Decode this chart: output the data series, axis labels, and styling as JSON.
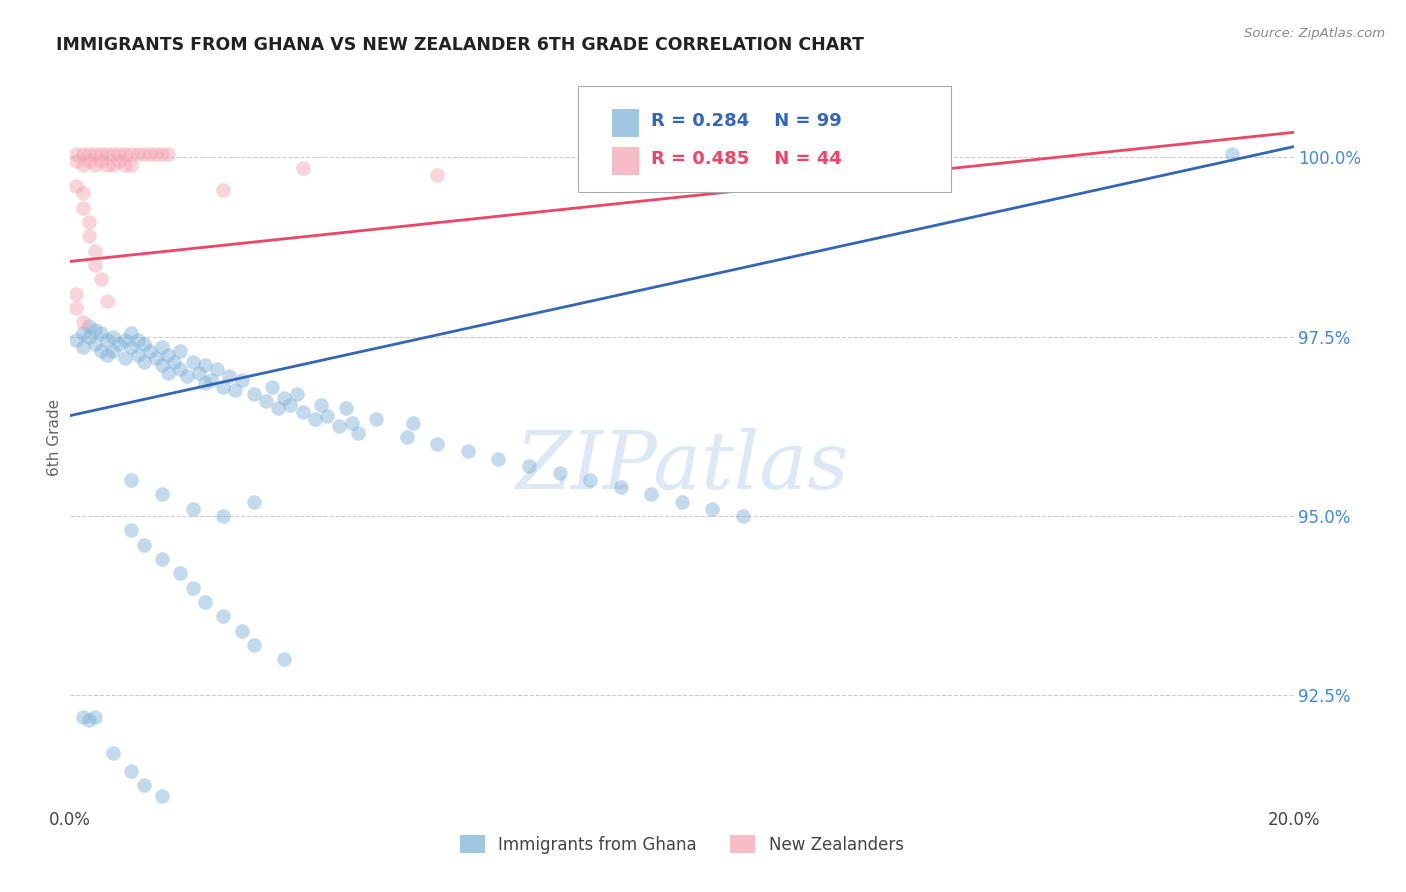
{
  "title": "IMMIGRANTS FROM GHANA VS NEW ZEALANDER 6TH GRADE CORRELATION CHART",
  "source": "Source: ZipAtlas.com",
  "ylabel": "6th Grade",
  "ylabel_right_ticks": [
    92.5,
    95.0,
    97.5,
    100.0
  ],
  "ylabel_right_labels": [
    "92.5%",
    "95.0%",
    "97.5%",
    "100.0%"
  ],
  "blue_color": "#7aaed6",
  "pink_color": "#f4a0b0",
  "blue_line_color": "#3366bb",
  "pink_line_color": "#ee4466",
  "watermark_text": "ZIPatlas",
  "watermark_color": "#dce8f5",
  "xmin": 0.0,
  "xmax": 0.2,
  "ymin": 91.0,
  "ymax": 101.2,
  "blue_line_x": [
    0.0,
    0.2
  ],
  "blue_line_y": [
    96.4,
    100.15
  ],
  "pink_line_x": [
    0.0,
    0.2
  ],
  "pink_line_y": [
    98.55,
    100.35
  ],
  "blue_scatter": [
    [
      0.001,
      97.45
    ],
    [
      0.002,
      97.55
    ],
    [
      0.002,
      97.35
    ],
    [
      0.003,
      97.65
    ],
    [
      0.003,
      97.5
    ],
    [
      0.004,
      97.4
    ],
    [
      0.004,
      97.6
    ],
    [
      0.005,
      97.3
    ],
    [
      0.005,
      97.55
    ],
    [
      0.006,
      97.45
    ],
    [
      0.006,
      97.25
    ],
    [
      0.007,
      97.5
    ],
    [
      0.007,
      97.3
    ],
    [
      0.008,
      97.4
    ],
    [
      0.009,
      97.2
    ],
    [
      0.009,
      97.45
    ],
    [
      0.01,
      97.35
    ],
    [
      0.01,
      97.55
    ],
    [
      0.011,
      97.25
    ],
    [
      0.011,
      97.45
    ],
    [
      0.012,
      97.15
    ],
    [
      0.012,
      97.4
    ],
    [
      0.013,
      97.3
    ],
    [
      0.014,
      97.2
    ],
    [
      0.015,
      97.1
    ],
    [
      0.015,
      97.35
    ],
    [
      0.016,
      97.0
    ],
    [
      0.016,
      97.25
    ],
    [
      0.017,
      97.15
    ],
    [
      0.018,
      97.05
    ],
    [
      0.018,
      97.3
    ],
    [
      0.019,
      96.95
    ],
    [
      0.02,
      97.15
    ],
    [
      0.021,
      97.0
    ],
    [
      0.022,
      96.85
    ],
    [
      0.022,
      97.1
    ],
    [
      0.023,
      96.9
    ],
    [
      0.024,
      97.05
    ],
    [
      0.025,
      96.8
    ],
    [
      0.026,
      96.95
    ],
    [
      0.027,
      96.75
    ],
    [
      0.028,
      96.9
    ],
    [
      0.03,
      96.7
    ],
    [
      0.032,
      96.6
    ],
    [
      0.033,
      96.8
    ],
    [
      0.034,
      96.5
    ],
    [
      0.035,
      96.65
    ],
    [
      0.036,
      96.55
    ],
    [
      0.037,
      96.7
    ],
    [
      0.038,
      96.45
    ],
    [
      0.04,
      96.35
    ],
    [
      0.041,
      96.55
    ],
    [
      0.042,
      96.4
    ],
    [
      0.044,
      96.25
    ],
    [
      0.045,
      96.5
    ],
    [
      0.046,
      96.3
    ],
    [
      0.047,
      96.15
    ],
    [
      0.05,
      96.35
    ],
    [
      0.055,
      96.1
    ],
    [
      0.056,
      96.3
    ],
    [
      0.06,
      96.0
    ],
    [
      0.065,
      95.9
    ],
    [
      0.07,
      95.8
    ],
    [
      0.075,
      95.7
    ],
    [
      0.08,
      95.6
    ],
    [
      0.085,
      95.5
    ],
    [
      0.09,
      95.4
    ],
    [
      0.095,
      95.3
    ],
    [
      0.1,
      95.2
    ],
    [
      0.105,
      95.1
    ],
    [
      0.11,
      95.0
    ],
    [
      0.01,
      94.8
    ],
    [
      0.012,
      94.6
    ],
    [
      0.015,
      94.4
    ],
    [
      0.018,
      94.2
    ],
    [
      0.02,
      94.0
    ],
    [
      0.022,
      93.8
    ],
    [
      0.025,
      93.6
    ],
    [
      0.028,
      93.4
    ],
    [
      0.03,
      93.2
    ],
    [
      0.035,
      93.0
    ],
    [
      0.01,
      95.5
    ],
    [
      0.015,
      95.3
    ],
    [
      0.02,
      95.1
    ],
    [
      0.025,
      95.0
    ],
    [
      0.03,
      95.2
    ],
    [
      0.002,
      92.2
    ],
    [
      0.003,
      92.15
    ],
    [
      0.004,
      92.2
    ],
    [
      0.007,
      91.7
    ],
    [
      0.01,
      91.45
    ],
    [
      0.012,
      91.25
    ],
    [
      0.015,
      91.1
    ],
    [
      0.19,
      100.05
    ]
  ],
  "pink_scatter": [
    [
      0.001,
      100.05
    ],
    [
      0.001,
      99.95
    ],
    [
      0.002,
      100.05
    ],
    [
      0.002,
      99.9
    ],
    [
      0.003,
      100.05
    ],
    [
      0.003,
      99.95
    ],
    [
      0.004,
      100.05
    ],
    [
      0.004,
      99.9
    ],
    [
      0.005,
      100.05
    ],
    [
      0.005,
      99.95
    ],
    [
      0.006,
      100.05
    ],
    [
      0.006,
      99.9
    ],
    [
      0.007,
      100.05
    ],
    [
      0.007,
      99.9
    ],
    [
      0.008,
      100.05
    ],
    [
      0.008,
      99.95
    ],
    [
      0.009,
      100.05
    ],
    [
      0.009,
      99.9
    ],
    [
      0.01,
      100.05
    ],
    [
      0.01,
      99.9
    ],
    [
      0.011,
      100.05
    ],
    [
      0.012,
      100.05
    ],
    [
      0.013,
      100.05
    ],
    [
      0.014,
      100.05
    ],
    [
      0.015,
      100.05
    ],
    [
      0.016,
      100.05
    ],
    [
      0.001,
      99.6
    ],
    [
      0.002,
      99.5
    ],
    [
      0.002,
      99.3
    ],
    [
      0.003,
      99.1
    ],
    [
      0.003,
      98.9
    ],
    [
      0.004,
      98.7
    ],
    [
      0.004,
      98.5
    ],
    [
      0.005,
      98.3
    ],
    [
      0.001,
      98.1
    ],
    [
      0.001,
      97.9
    ],
    [
      0.002,
      97.7
    ],
    [
      0.006,
      98.0
    ],
    [
      0.025,
      99.55
    ],
    [
      0.038,
      99.85
    ],
    [
      0.06,
      99.75
    ],
    [
      0.13,
      100.05
    ]
  ]
}
